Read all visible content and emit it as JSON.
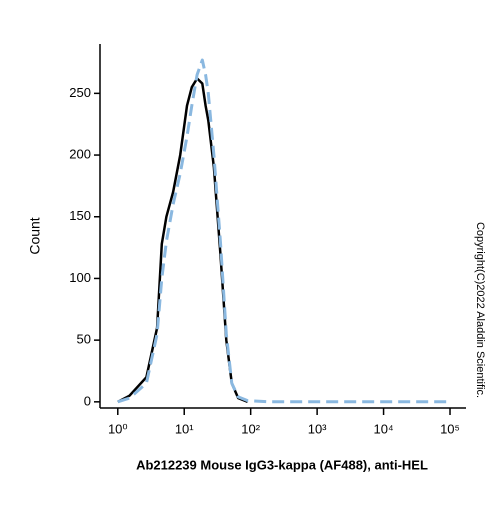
{
  "chart_data": {
    "type": "line",
    "title": "Ab212239 Mouse IgG3-kappa (AF488), anti-HEL",
    "y_label": "Count",
    "annotation": "Copyright(C)2022 Aladdin Scientific.",
    "x_scale": "log",
    "x": [
      1,
      1.5,
      2.7,
      3.9,
      4.6,
      5.4,
      6.8,
      8.7,
      11,
      13,
      15.6,
      18.7,
      21,
      23,
      28,
      35,
      43,
      52,
      65,
      90,
      200,
      100000
    ],
    "series": [
      {
        "color": "#000000",
        "dash": false,
        "values": [
          0,
          5,
          20,
          60,
          128,
          150,
          170,
          200,
          240,
          255,
          262,
          258,
          240,
          228,
          190,
          120,
          50,
          15,
          3,
          0,
          null,
          null
        ]
      },
      {
        "color": "#8ab8e0",
        "dash": true,
        "values": [
          0,
          3,
          15,
          55,
          100,
          130,
          160,
          185,
          215,
          240,
          265,
          277,
          265,
          250,
          200,
          130,
          55,
          15,
          4,
          1,
          0,
          0
        ]
      }
    ],
    "xlim": [
      0.54,
      174000
    ],
    "ylim": [
      -5,
      290
    ],
    "xticks": [
      {
        "value": 1,
        "label": "10⁰"
      },
      {
        "value": 10,
        "label": "10¹"
      },
      {
        "value": 100,
        "label": "10²"
      },
      {
        "value": 1000,
        "label": "10³"
      },
      {
        "value": 10000,
        "label": "10⁴"
      },
      {
        "value": 100000,
        "label": "10⁵"
      }
    ],
    "yticks": [
      0,
      50,
      100,
      150,
      200,
      250
    ]
  }
}
